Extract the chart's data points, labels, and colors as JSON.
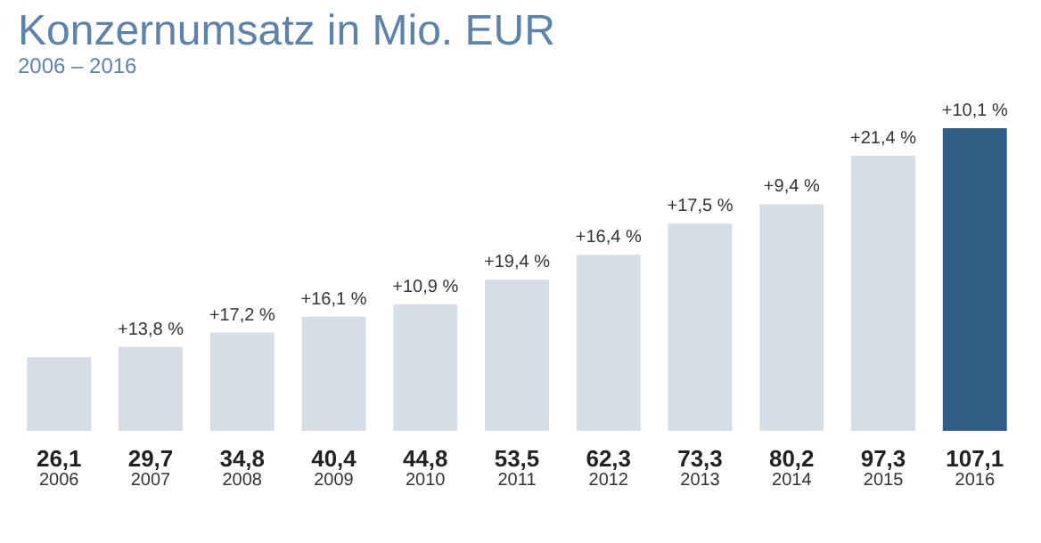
{
  "chart_data": {
    "type": "bar",
    "title": "Konzernumsatz in Mio. EUR",
    "subtitle": "2006 – 2016",
    "categories": [
      "2006",
      "2007",
      "2008",
      "2009",
      "2010",
      "2011",
      "2012",
      "2013",
      "2014",
      "2015",
      "2016"
    ],
    "values": [
      26.1,
      29.7,
      34.8,
      40.4,
      44.8,
      53.5,
      62.3,
      73.3,
      80.2,
      97.3,
      107.1
    ],
    "value_labels": [
      "26,1",
      "29,7",
      "34,8",
      "40,4",
      "44,8",
      "53,5",
      "62,3",
      "73,3",
      "80,2",
      "97,3",
      "107,1"
    ],
    "colors": [
      "#d6dde4",
      "#d6dde4",
      "#d6dde4",
      "#d6dde4",
      "#d6dde4",
      "#d6dde4",
      "#d6dde4",
      "#d6dde4",
      "#d6dde4",
      "#d6dde4",
      "#325d85"
    ],
    "annotations": [
      {
        "text": "+13,8 %",
        "x": "2007",
        "y": 29.7
      },
      {
        "text": "+17,2 %",
        "x": "2008",
        "y": 34.8
      },
      {
        "text": "+16,1 %",
        "x": "2009",
        "y": 40.4
      },
      {
        "text": "+10,9 %",
        "x": "2010",
        "y": 44.8
      },
      {
        "text": "+19,4 %",
        "x": "2011",
        "y": 53.5
      },
      {
        "text": "+16,4 %",
        "x": "2012",
        "y": 62.3
      },
      {
        "text": "+17,5 %",
        "x": "2013",
        "y": 73.3
      },
      {
        "text": "+9,4 %",
        "x": "2014",
        "y": 80.2
      },
      {
        "text": "+21,4 %",
        "x": "2015",
        "y": 97.3
      },
      {
        "text": "+10,1 %",
        "x": "2016",
        "y": 107.1
      }
    ]
  }
}
